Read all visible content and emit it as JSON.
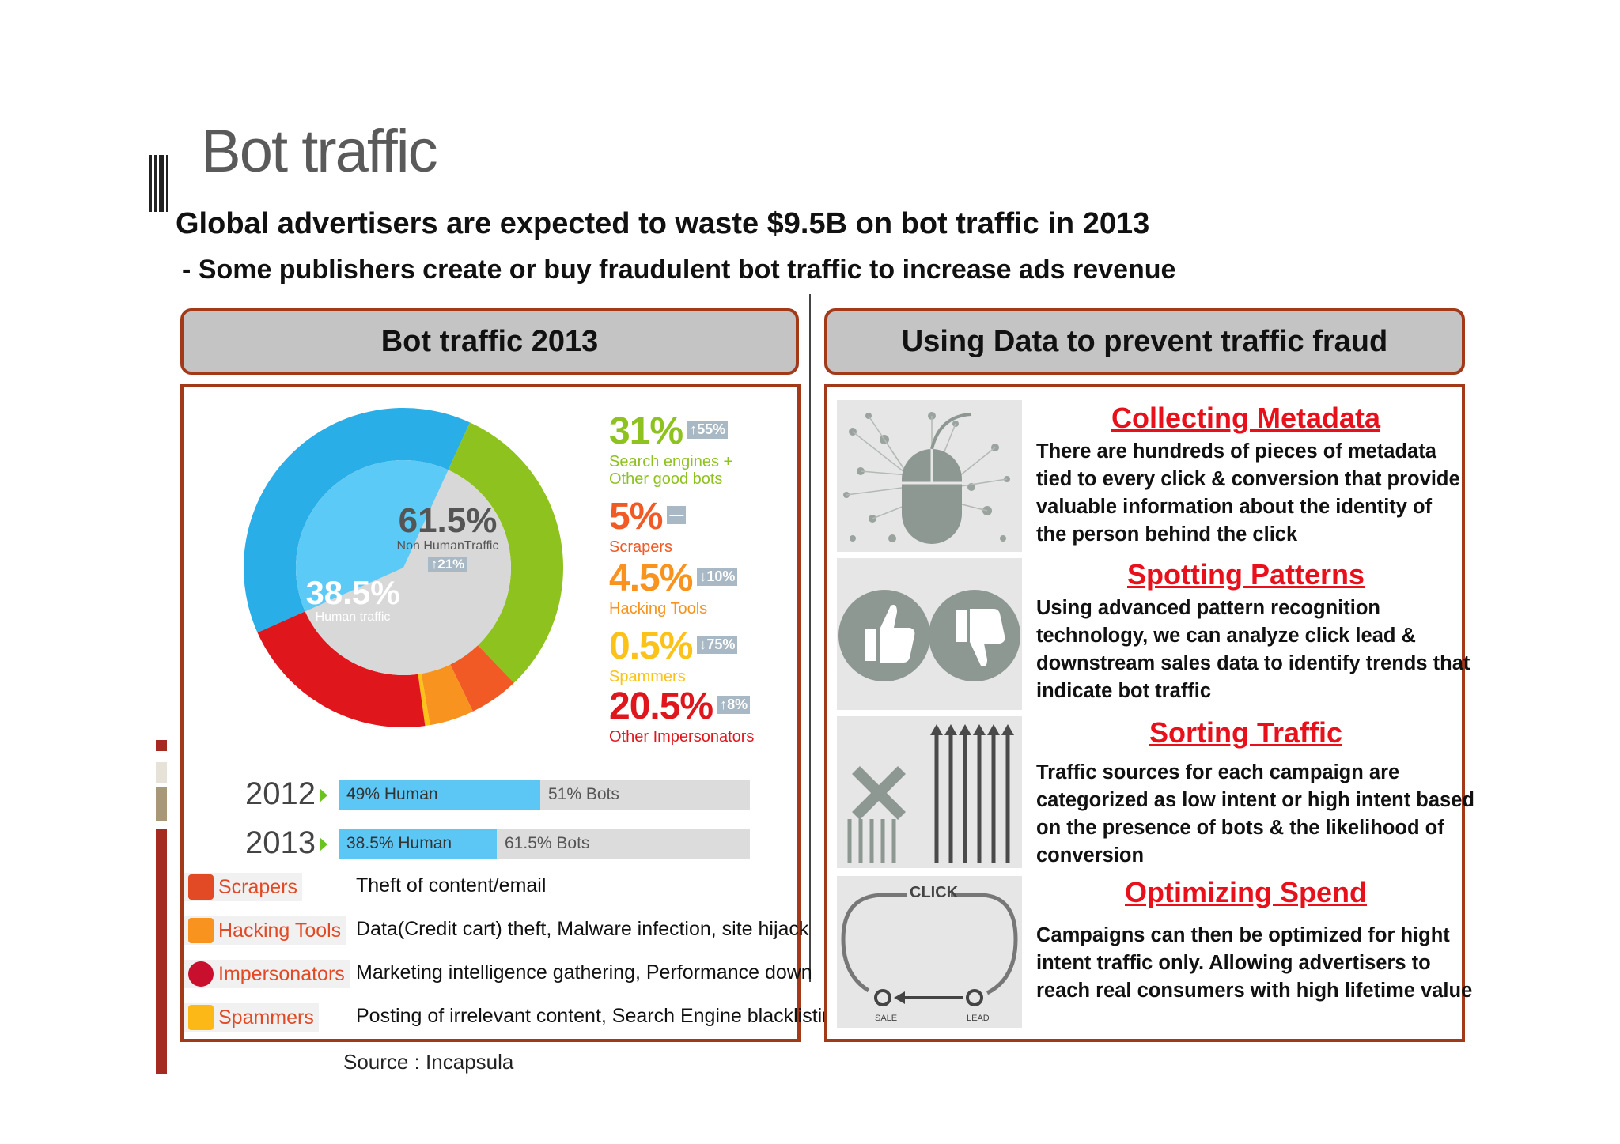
{
  "slide": {
    "title": "Bot traffic",
    "subtitle": "Global advertisers are expected to waste $9.5B on bot traffic in 2013",
    "bullet": "- Some publishers create or buy fraudulent bot traffic to increase ads revenue",
    "source": "Source : Incapsula"
  },
  "left_panel": {
    "header": "Bot traffic 2013",
    "donut": {
      "center_pct": "61.5%",
      "center_label": "Non HumanTraffic",
      "center_badge": "↑21%",
      "human_pct": "38.5%",
      "human_label": "Human traffic"
    },
    "stats": [
      {
        "pct": "31%",
        "badge": "↑55%",
        "desc": [
          "Search engines +",
          "Other good bots"
        ],
        "color": "#8dc21f"
      },
      {
        "pct": "5%",
        "badge": "—",
        "desc": [
          "Scrapers"
        ],
        "color": "#f15a24"
      },
      {
        "pct": "4.5%",
        "badge": "↓10%",
        "desc": [
          "Hacking Tools"
        ],
        "color": "#f7931e"
      },
      {
        "pct": "0.5%",
        "badge": "↓75%",
        "desc": [
          "Spammers"
        ],
        "color": "#fbc21a"
      },
      {
        "pct": "20.5%",
        "badge": "↑8%",
        "desc": [
          "Other Impersonators"
        ],
        "color": "#e0161d"
      }
    ],
    "years": [
      {
        "year": "2012",
        "human": "49% Human",
        "bots": "51% Bots",
        "human_fraction": 0.49
      },
      {
        "year": "2013",
        "human": "38.5% Human",
        "bots": "61.5% Bots",
        "human_fraction": 0.385
      }
    ],
    "bot_types": [
      {
        "label": "Scrapers",
        "desc": "Theft of content/email",
        "icon": "scraper-icon"
      },
      {
        "label": "Hacking Tools",
        "desc": "Data(Credit cart) theft, Malware infection, site hijack",
        "icon": "hacking-icon"
      },
      {
        "label": "Impersonators",
        "desc": "Marketing intelligence gathering, Performance down",
        "icon": "impersonator-icon"
      },
      {
        "label": "Spammers",
        "desc": "Posting of irrelevant content, Search Engine blacklisting",
        "icon": "spammer-icon"
      }
    ]
  },
  "right_panel": {
    "header": "Using Data to prevent traffic fraud",
    "features": [
      {
        "title": "Collecting Metadata",
        "lines": [
          "There are hundreds of pieces of metadata",
          "tied to every click & conversion that provide",
          "valuable information about the identity of",
          "the person behind the click"
        ],
        "icon": "mouse-network-icon"
      },
      {
        "title": "Spotting Patterns",
        "lines": [
          "Using advanced pattern recognition",
          "technology, we can analyze click lead &",
          "downstream sales data to identify trends that",
          "indicate bot traffic"
        ],
        "icon": "thumbs-icon"
      },
      {
        "title": "Sorting Traffic",
        "lines": [
          "Traffic sources for each campaign are",
          "categorized as low intent or high intent based",
          "on the presence of bots & the likelihood of",
          "conversion"
        ],
        "icon": "sorting-arrows-icon"
      },
      {
        "title": "Optimizing Spend",
        "lines": [
          "Campaigns can then be optimized for hight",
          "intent traffic only. Allowing advertisers to",
          "reach real consumers with high lifetime value"
        ],
        "icon": "click-cycle-icon",
        "diagram": {
          "top": "CLICK",
          "left": "SALE",
          "right": "LEAD"
        }
      }
    ]
  },
  "chart_data": {
    "type": "pie",
    "categories": [
      "Human traffic",
      "Search engines + Other good bots",
      "Scrapers",
      "Hacking Tools",
      "Spammers",
      "Other Impersonators"
    ],
    "values": [
      38.5,
      31,
      5,
      4.5,
      0.5,
      20.5
    ],
    "colors": [
      "#29aee8",
      "#8dc21f",
      "#f15a24",
      "#f7931e",
      "#fbc21a",
      "#e0161d"
    ]
  }
}
